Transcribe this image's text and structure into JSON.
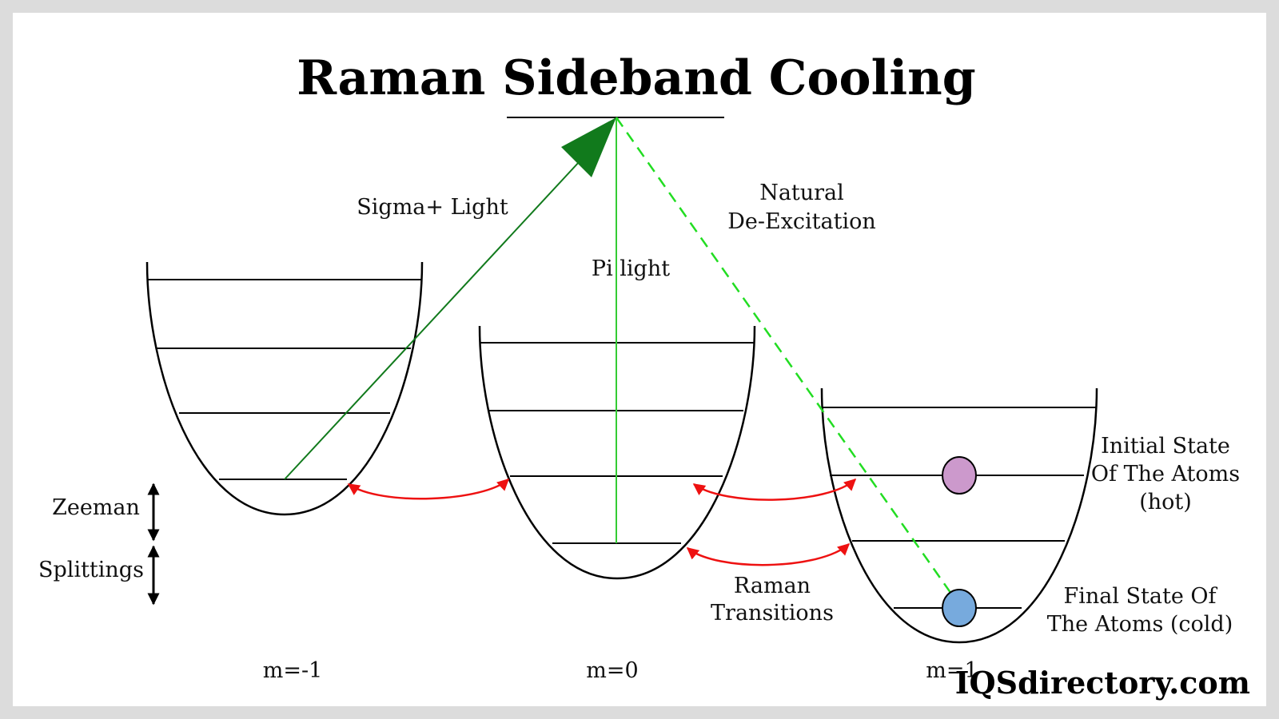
{
  "title": "Raman Sideband Cooling",
  "labels": {
    "sigma_light": "Sigma+ Light",
    "pi_light": "Pi light",
    "natural_line1": "Natural",
    "natural_line2": "De-Excitation",
    "zeeman": "Zeeman",
    "splittings": "Splittings",
    "raman_line1": "Raman",
    "raman_line2": "Transitions",
    "initial_line1": "Initial State",
    "initial_line2": "Of The Atoms",
    "initial_line3": "(hot)",
    "final_line1": "Final State Of",
    "final_line2": "The Atoms (cold)"
  },
  "wells": [
    {
      "label": "m=-1"
    },
    {
      "label": "m=0"
    },
    {
      "label": "m=1"
    }
  ],
  "brand": "IQSdirectory.com",
  "colors": {
    "sigma_arrow": "#117a1c",
    "pi_line": "#33cc33",
    "natural_dashed": "#22dd22",
    "raman_arrow": "#ee1111",
    "hot_atom": "#cc99cc",
    "cold_atom": "#77aadd"
  }
}
